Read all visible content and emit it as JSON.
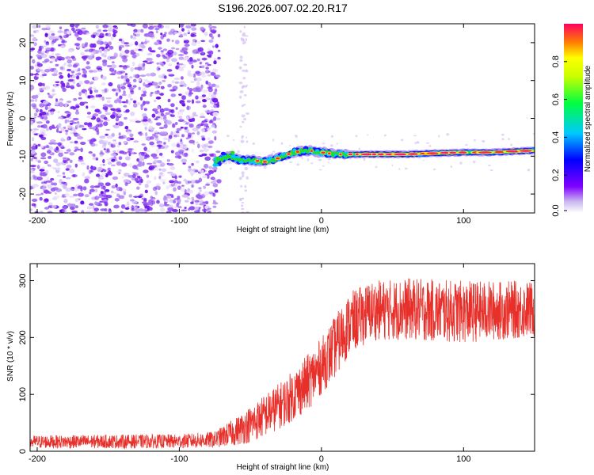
{
  "title": "S196.2026.007.02.20.R17",
  "colors": {
    "snr_line": "#e8302b",
    "axis": "#000000",
    "background": "#ffffff"
  },
  "chart_data": [
    {
      "type": "heatmap",
      "name": "spectrogram",
      "xlabel": "Height of straight line (km)",
      "ylabel": "Frequency (Hz)",
      "xlim": [
        -205,
        150
      ],
      "ylim": [
        -25,
        25
      ],
      "xticks": [
        -200,
        -100,
        0,
        100
      ],
      "yticks": [
        -20,
        -10,
        0,
        10,
        20
      ],
      "noise_region_x": [
        -205,
        -72
      ],
      "signal_track": [
        {
          "x": -75,
          "y": -11.5
        },
        {
          "x": -65,
          "y": -10
        },
        {
          "x": -58,
          "y": -11
        },
        {
          "x": -50,
          "y": -11
        },
        {
          "x": -40,
          "y": -11.5
        },
        {
          "x": -30,
          "y": -10.5
        },
        {
          "x": -20,
          "y": -9
        },
        {
          "x": -10,
          "y": -8.5
        },
        {
          "x": 0,
          "y": -9
        },
        {
          "x": 10,
          "y": -9.5
        },
        {
          "x": 20,
          "y": -9.5
        },
        {
          "x": 40,
          "y": -9.5
        },
        {
          "x": 60,
          "y": -9.5
        },
        {
          "x": 80,
          "y": -9.2
        },
        {
          "x": 100,
          "y": -9
        },
        {
          "x": 120,
          "y": -9
        },
        {
          "x": 150,
          "y": -8.5
        }
      ],
      "colorbar": {
        "label": "Normalized spectral amplitude",
        "range": [
          0,
          1
        ],
        "ticks": [
          "0.0",
          "0.2",
          "0.4",
          "0.6",
          "0.8"
        ]
      }
    },
    {
      "type": "line",
      "name": "snr",
      "xlabel": "Height of straight line (km)",
      "ylabel": "SNR (10 * v/v)",
      "xlim": [
        -205,
        150
      ],
      "ylim": [
        0,
        330
      ],
      "xticks": [
        -200,
        -100,
        0,
        100
      ],
      "yticks": [
        0,
        100,
        200,
        300
      ],
      "series": [
        {
          "name": "SNR",
          "envelope": [
            {
              "x": -205,
              "low": 5,
              "high": 28
            },
            {
              "x": -100,
              "low": 5,
              "high": 30
            },
            {
              "x": -75,
              "low": 6,
              "high": 35
            },
            {
              "x": -60,
              "low": 10,
              "high": 60
            },
            {
              "x": -50,
              "low": 15,
              "high": 80
            },
            {
              "x": -40,
              "low": 25,
              "high": 100
            },
            {
              "x": -25,
              "low": 45,
              "high": 130
            },
            {
              "x": -10,
              "low": 70,
              "high": 170
            },
            {
              "x": 0,
              "low": 100,
              "high": 200
            },
            {
              "x": 10,
              "low": 130,
              "high": 240
            },
            {
              "x": 20,
              "low": 170,
              "high": 280
            },
            {
              "x": 35,
              "low": 195,
              "high": 300
            },
            {
              "x": 60,
              "low": 195,
              "high": 305
            },
            {
              "x": 100,
              "low": 190,
              "high": 300
            },
            {
              "x": 150,
              "low": 200,
              "high": 300
            }
          ]
        }
      ]
    }
  ]
}
